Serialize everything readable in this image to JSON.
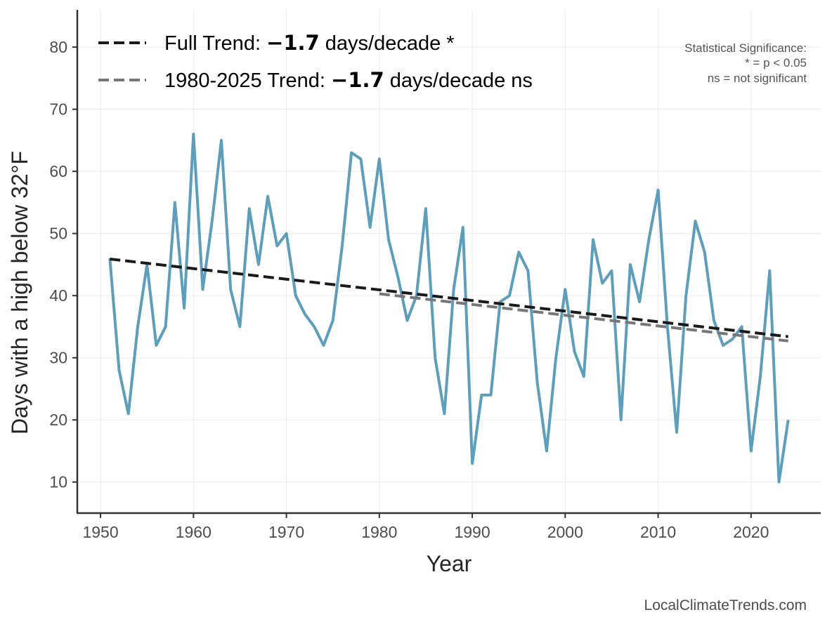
{
  "chart_data": {
    "type": "line",
    "title": "",
    "xlabel": "Year",
    "ylabel": "Days with a high below 32°F",
    "xlim": [
      1947.5,
      2027.5
    ],
    "ylim": [
      5,
      86
    ],
    "x_ticks": [
      1950,
      1960,
      1970,
      1980,
      1990,
      2000,
      2010,
      2020
    ],
    "y_ticks": [
      10,
      20,
      30,
      40,
      50,
      60,
      70,
      80
    ],
    "grid": true,
    "legend_position": "top-left",
    "series": [
      {
        "x": [
          1951,
          1952,
          1953,
          1954,
          1955,
          1956,
          1957,
          1958,
          1959,
          1960,
          1961,
          1962,
          1963,
          1964,
          1965,
          1966,
          1967,
          1968,
          1969,
          1970,
          1971,
          1972,
          1973,
          1974,
          1975,
          1976,
          1977,
          1978,
          1979,
          1980,
          1981,
          1982,
          1983,
          1984,
          1985,
          1986,
          1987,
          1988,
          1989,
          1990,
          1991,
          1992,
          1993,
          1994,
          1995,
          1996,
          1997,
          1998,
          1999,
          2000,
          2001,
          2002,
          2003,
          2004,
          2005,
          2006,
          2007,
          2008,
          2009,
          2010,
          2011,
          2012,
          2013,
          2014,
          2015,
          2016,
          2017,
          2018,
          2019,
          2020,
          2021,
          2022,
          2023,
          2024
        ],
        "values": [
          46,
          28,
          21,
          35,
          45,
          32,
          35,
          55,
          38,
          66,
          41,
          52,
          65,
          41,
          35,
          54,
          45,
          56,
          48,
          50,
          40,
          37,
          35,
          32,
          36,
          48,
          63,
          62,
          51,
          62,
          49,
          43,
          36,
          40,
          54,
          30,
          21,
          41,
          51,
          13,
          24,
          24,
          39,
          40,
          47,
          44,
          26,
          15,
          30,
          41,
          31,
          27,
          49,
          42,
          44,
          20,
          45,
          39,
          49,
          57,
          35,
          18,
          40,
          52,
          47,
          36,
          32,
          33,
          35,
          15,
          27,
          44,
          10,
          20
        ],
        "color": "#5b9fbd"
      },
      {
        "name": "Full Trend",
        "x": [
          1951,
          2024
        ],
        "values": [
          45.9,
          33.4
        ],
        "color": "#1a1a1a",
        "style": "dashed"
      },
      {
        "name": "1980-2025 Trend",
        "x": [
          1980,
          2024
        ],
        "values": [
          40.3,
          32.7
        ],
        "color": "#777777",
        "style": "dashed"
      }
    ],
    "legend": [
      {
        "prefix": "Full Trend: ",
        "value": "−1.7",
        "suffix": " days/decade *"
      },
      {
        "prefix": "1980-2025 Trend: ",
        "value": "−1.7",
        "suffix": " days/decade ns"
      }
    ],
    "annotations": {
      "significance": [
        "Statistical Significance:",
        "* = p < 0.05",
        "ns = not significant"
      ],
      "credit": "LocalClimateTrends.com"
    }
  }
}
